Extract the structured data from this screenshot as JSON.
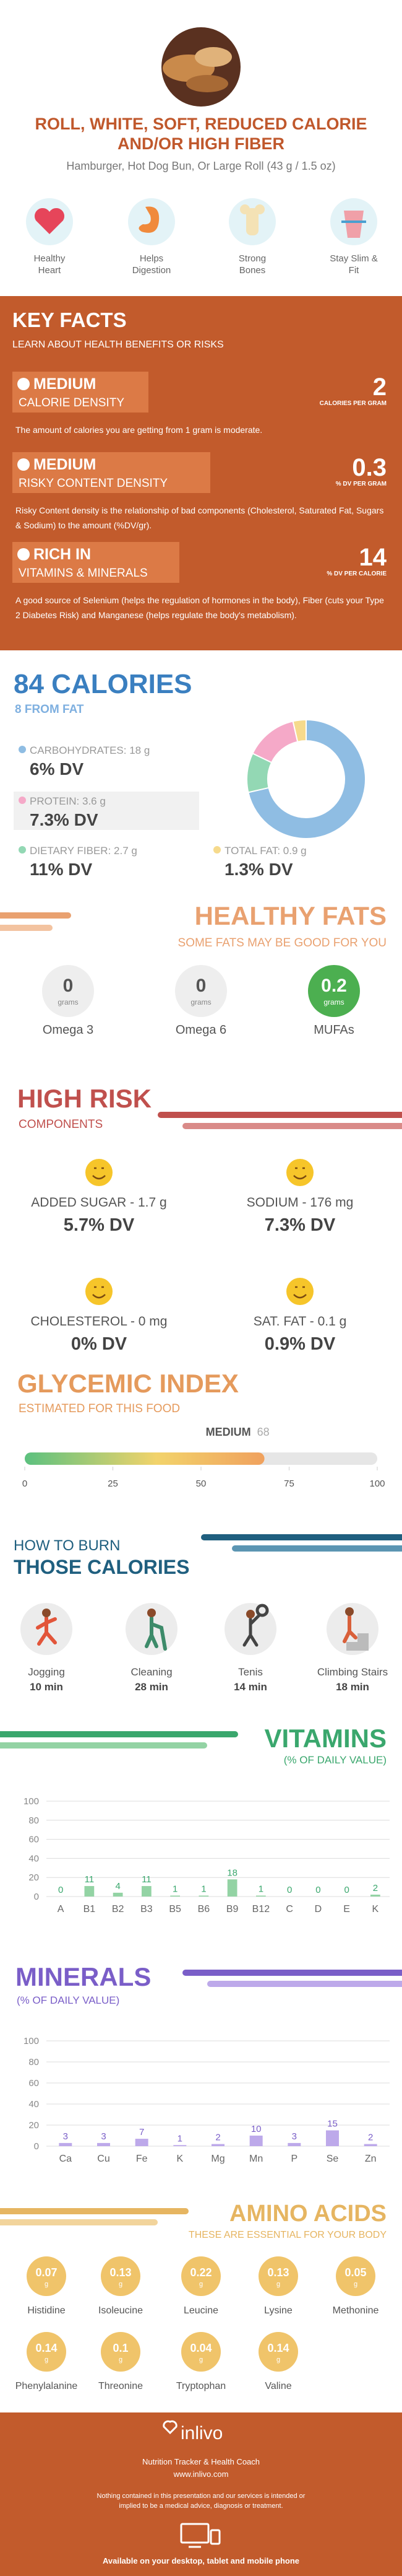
{
  "header": {
    "title": "ROLL, WHITE, SOFT, REDUCED CALORIE AND/OR HIGH FIBER",
    "subtitle": "Hamburger, Hot Dog Bun, Or Large Roll (43 g / 1.5 oz)"
  },
  "benefits": [
    "Healthy Heart",
    "Helps Digestion",
    "Strong Bones",
    "Stay Slim & Fit"
  ],
  "key_facts": {
    "title": "KEY FACTS",
    "subtitle": "LEARN ABOUT HEALTH BENEFITS OR RISKS",
    "items": [
      {
        "level": "MEDIUM",
        "name": "CALORIE DENSITY",
        "value": "2",
        "unit": "CALORIES PER GRAM",
        "text": "The amount of calories you are getting from 1 gram is moderate."
      },
      {
        "level": "MEDIUM",
        "name": "RISKY CONTENT DENSITY",
        "value": "0.3",
        "unit": "% DV PER GRAM",
        "text": "Risky Content density is the relationship of bad components (Cholesterol, Saturated Fat, Sugars & Sodium) to the amount (%DV/gr)."
      },
      {
        "level": "RICH IN",
        "name": "VITAMINS & MINERALS",
        "value": "14",
        "unit": "% DV PER CALORIE",
        "text": "A good source of Selenium (helps the regulation of hormones in the body), Fiber (cuts your  Type 2 Diabetes Risk) and Manganese (helps regulate the body's metabolism)."
      }
    ]
  },
  "calories": {
    "title": "84 CALORIES",
    "subtitle": "8 FROM FAT"
  },
  "chart_data": [
    {
      "type": "pie",
      "labels": [
        "CARBOHYDRATES: 18 g",
        "DIETARY FIBER: 2.7 g",
        "PROTEIN: 3.6 g",
        "TOTAL FAT: 0.9 g"
      ],
      "values": [
        18,
        2.7,
        3.6,
        0.9
      ],
      "dv": [
        "6% DV",
        "11% DV",
        "7.3% DV",
        "1.3% DV"
      ],
      "colors": [
        "#8fbde3",
        "#93d8b4",
        "#f5a9c8",
        "#f6da8c"
      ]
    },
    {
      "type": "bar",
      "title": "VITAMINS",
      "subtitle": "(% OF DAILY VALUE)",
      "categories": [
        "A",
        "B1",
        "B2",
        "B3",
        "B5",
        "B6",
        "B9",
        "B12",
        "C",
        "D",
        "E",
        "K"
      ],
      "values": [
        0,
        11,
        4,
        11,
        1,
        1,
        18,
        1,
        0,
        0,
        0,
        2
      ],
      "color": "#93d3a4",
      "label_color": "#3aa76d",
      "ylim": [
        0,
        100
      ],
      "yticks": [
        0,
        20,
        40,
        60,
        80,
        100
      ],
      "grid": true
    },
    {
      "type": "bar",
      "title": "MINERALS",
      "subtitle": "(% OF DAILY VALUE)",
      "categories": [
        "Ca",
        "Cu",
        "Fe",
        "K",
        "Mg",
        "Mn",
        "P",
        "Se",
        "Zn"
      ],
      "values": [
        3,
        3,
        7,
        1,
        2,
        10,
        3,
        15,
        2
      ],
      "color": "#bda9ea",
      "label_color": "#7a5ec8",
      "ylim": [
        0,
        100
      ],
      "yticks": [
        0,
        20,
        40,
        60,
        80,
        100
      ],
      "grid": true
    }
  ],
  "healthy_fats": {
    "title": "HEALTHY FATS",
    "subtitle": "SOME FATS MAY BE GOOD FOR YOU",
    "items": [
      {
        "value": "0",
        "unit": "grams",
        "name": "Omega 3"
      },
      {
        "value": "0",
        "unit": "grams",
        "name": "Omega 6"
      },
      {
        "value": "0.2",
        "unit": "grams",
        "name": "MUFAs"
      }
    ]
  },
  "high_risk": {
    "title": "HIGH RISK",
    "subtitle": "COMPONENTS",
    "items": [
      {
        "name": "ADDED SUGAR - 1.7 g",
        "dv": "5.7% DV"
      },
      {
        "name": "SODIUM - 176 mg",
        "dv": "7.3% DV"
      },
      {
        "name": "CHOLESTEROL - 0 mg",
        "dv": "0% DV"
      },
      {
        "name": "SAT. FAT - 0.1 g",
        "dv": "0.9% DV"
      }
    ]
  },
  "glycemic": {
    "title": "GLYCEMIC INDEX",
    "subtitle": "ESTIMATED FOR THIS FOOD",
    "level": "MEDIUM",
    "value": 68,
    "xlim": [
      0,
      100
    ],
    "xticks": [
      0,
      25,
      50,
      75,
      100
    ]
  },
  "burn": {
    "title": "HOW TO BURN",
    "subtitle": "THOSE CALORIES",
    "items": [
      {
        "name": "Jogging",
        "time": "10 min"
      },
      {
        "name": "Cleaning",
        "time": "28 min"
      },
      {
        "name": "Tenis",
        "time": "14 min"
      },
      {
        "name": "Climbing Stairs",
        "time": "18 min"
      }
    ]
  },
  "amino_acids": {
    "title": "AMINO ACIDS",
    "subtitle": "THESE ARE ESSENTIAL FOR YOUR BODY",
    "items": [
      {
        "value": "0.07",
        "unit": "g",
        "name": "Histidine"
      },
      {
        "value": "0.13",
        "unit": "g",
        "name": "Isoleucine"
      },
      {
        "value": "0.22",
        "unit": "g",
        "name": "Leucine"
      },
      {
        "value": "0.13",
        "unit": "g",
        "name": "Lysine"
      },
      {
        "value": "0.05",
        "unit": "g",
        "name": "Methonine"
      },
      {
        "value": "0.14",
        "unit": "g",
        "name": "Phenylalanine"
      },
      {
        "value": "0.1",
        "unit": "g",
        "name": "Threonine"
      },
      {
        "value": "0.04",
        "unit": "g",
        "name": "Tryptophan"
      },
      {
        "value": "0.14",
        "unit": "g",
        "name": "Valine"
      }
    ]
  },
  "footer": {
    "brand": "inlivo",
    "tagline": "Nutrition Tracker & Health Coach",
    "url": "www.inlivo.com",
    "disclaimer": "Nothing contained in this presentation and our services is intended or implied to be a medical advice, diagnosis or treatment.",
    "available": "Available on your desktop, tablet and mobile phone"
  }
}
